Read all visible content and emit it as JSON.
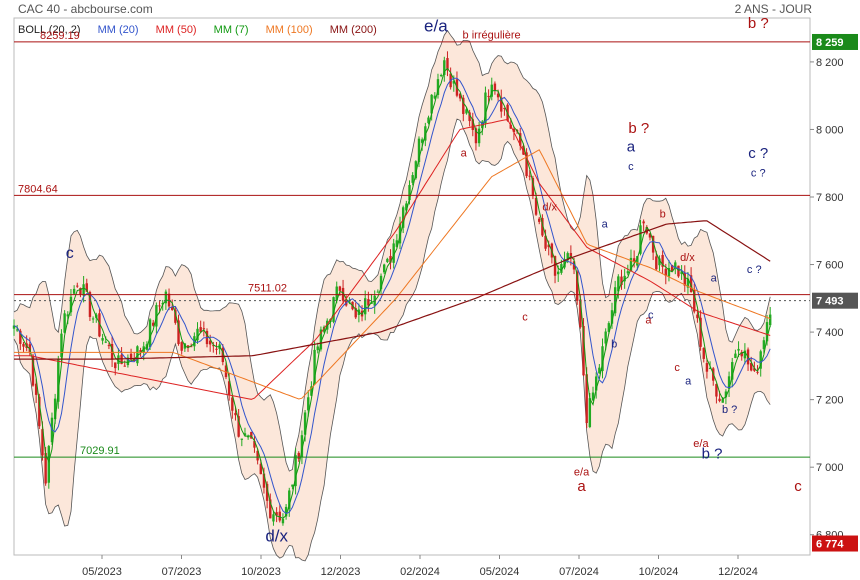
{
  "header": {
    "title": "CAC 40 - abcbourse.com",
    "period": "2 ANS - JOUR"
  },
  "legend": [
    {
      "label": "BOLL (20, 2)",
      "color": "#222222"
    },
    {
      "label": "MM (20)",
      "color": "#3355cc"
    },
    {
      "label": "MM (50)",
      "color": "#dd2222"
    },
    {
      "label": "MM (7)",
      "color": "#119911"
    },
    {
      "label": "MM (100)",
      "color": "#ee7722"
    },
    {
      "label": "MM (200)",
      "color": "#881111"
    }
  ],
  "chart_data": {
    "type": "line",
    "description_note": "",
    "x_ticks": [
      "05/2023",
      "07/2023",
      "10/2023",
      "12/2023",
      "02/2024",
      "05/2024",
      "07/2024",
      "10/2024",
      "12/2024"
    ],
    "y_ticks": [
      6800,
      7000,
      7200,
      7400,
      7600,
      7800,
      8000,
      8200
    ],
    "ylim": [
      6740,
      8330
    ],
    "last_price": {
      "label": "7 493",
      "value": 7493,
      "color": "#555555"
    },
    "top_badge": {
      "label": "8 259",
      "value": 8259,
      "color": "#1a8a1a"
    },
    "bottom_badge": {
      "label": "6 774",
      "value": 6774,
      "color": "#cc1111"
    },
    "levels": [
      {
        "label": "8259.19",
        "value": 8259.19,
        "color": "#aa1111"
      },
      {
        "label": "7804.64",
        "value": 7804.64,
        "color": "#aa1111"
      },
      {
        "label": "7511.02",
        "value": 7511.02,
        "color": "#aa1111"
      },
      {
        "label": "7029.91",
        "value": 7029.91,
        "color": "#1a8a1a"
      }
    ],
    "price_anchors": [
      [
        0,
        7420
      ],
      [
        0.02,
        7340
      ],
      [
        0.04,
        6960
      ],
      [
        0.06,
        7420
      ],
      [
        0.08,
        7560
      ],
      [
        0.1,
        7440
      ],
      [
        0.13,
        7300
      ],
      [
        0.16,
        7350
      ],
      [
        0.19,
        7520
      ],
      [
        0.21,
        7360
      ],
      [
        0.23,
        7400
      ],
      [
        0.26,
        7340
      ],
      [
        0.28,
        7120
      ],
      [
        0.3,
        7050
      ],
      [
        0.32,
        6880
      ],
      [
        0.34,
        6850
      ],
      [
        0.36,
        7080
      ],
      [
        0.38,
        7350
      ],
      [
        0.41,
        7540
      ],
      [
        0.43,
        7430
      ],
      [
        0.45,
        7520
      ],
      [
        0.47,
        7600
      ],
      [
        0.49,
        7780
      ],
      [
        0.52,
        8060
      ],
      [
        0.54,
        8210
      ],
      [
        0.56,
        8080
      ],
      [
        0.58,
        7970
      ],
      [
        0.6,
        8160
      ],
      [
        0.62,
        8030
      ],
      [
        0.64,
        7930
      ],
      [
        0.66,
        7700
      ],
      [
        0.68,
        7570
      ],
      [
        0.7,
        7620
      ],
      [
        0.71,
        7440
      ],
      [
        0.72,
        7140
      ],
      [
        0.74,
        7350
      ],
      [
        0.76,
        7560
      ],
      [
        0.78,
        7600
      ],
      [
        0.79,
        7750
      ],
      [
        0.81,
        7590
      ],
      [
        0.83,
        7600
      ],
      [
        0.85,
        7520
      ],
      [
        0.87,
        7290
      ],
      [
        0.89,
        7200
      ],
      [
        0.91,
        7380
      ],
      [
        0.93,
        7260
      ],
      [
        0.95,
        7480
      ]
    ],
    "mm200_anchors": [
      [
        0.12,
        7320
      ],
      [
        0.3,
        7330
      ],
      [
        0.46,
        7400
      ],
      [
        0.58,
        7500
      ],
      [
        0.7,
        7620
      ],
      [
        0.82,
        7720
      ],
      [
        0.87,
        7730
      ],
      [
        0.95,
        7610
      ]
    ],
    "mm100_anchors": [
      [
        0.2,
        7340
      ],
      [
        0.36,
        7200
      ],
      [
        0.48,
        7500
      ],
      [
        0.6,
        7860
      ],
      [
        0.66,
        7940
      ],
      [
        0.72,
        7660
      ],
      [
        0.8,
        7590
      ],
      [
        0.86,
        7520
      ],
      [
        0.95,
        7440
      ]
    ],
    "mm50_anchors": [
      [
        0.02,
        7330
      ],
      [
        0.3,
        7200
      ],
      [
        0.38,
        7380
      ],
      [
        0.48,
        7700
      ],
      [
        0.56,
        8000
      ],
      [
        0.62,
        8030
      ],
      [
        0.66,
        7840
      ],
      [
        0.72,
        7650
      ],
      [
        0.8,
        7550
      ],
      [
        0.86,
        7460
      ],
      [
        0.95,
        7390
      ]
    ],
    "annotations": [
      {
        "text": "e/a",
        "value": 8290,
        "pos": 0.53,
        "color": "#1a237e",
        "size": 17
      },
      {
        "text": "b irrégulière",
        "value": 8270,
        "pos": 0.6,
        "color": "#aa1111",
        "size": 11
      },
      {
        "text": "b ?",
        "value": 8300,
        "pos": 0.935,
        "color": "#aa1111",
        "size": 15
      },
      {
        "text": "a",
        "value": 7920,
        "pos": 0.565,
        "color": "#aa1111",
        "size": 11
      },
      {
        "text": "c",
        "value": 7620,
        "pos": 0.07,
        "color": "#1a237e",
        "size": 16
      },
      {
        "text": "b ?",
        "value": 7990,
        "pos": 0.785,
        "color": "#aa1111",
        "size": 15
      },
      {
        "text": "a",
        "value": 7935,
        "pos": 0.775,
        "color": "#1a237e",
        "size": 15
      },
      {
        "text": "c",
        "value": 7880,
        "pos": 0.775,
        "color": "#1a237e",
        "size": 11
      },
      {
        "text": "c ?",
        "value": 7915,
        "pos": 0.935,
        "color": "#1a237e",
        "size": 15
      },
      {
        "text": "c ?",
        "value": 7860,
        "pos": 0.935,
        "color": "#1a237e",
        "size": 11
      },
      {
        "text": "d/x",
        "value": 7760,
        "pos": 0.673,
        "color": "#aa1111",
        "size": 11
      },
      {
        "text": "a",
        "value": 7710,
        "pos": 0.742,
        "color": "#1a237e",
        "size": 11
      },
      {
        "text": "b",
        "value": 7740,
        "pos": 0.815,
        "color": "#aa1111",
        "size": 11
      },
      {
        "text": "d/x",
        "value": 7610,
        "pos": 0.846,
        "color": "#aa1111",
        "size": 11
      },
      {
        "text": "c ?",
        "value": 7575,
        "pos": 0.93,
        "color": "#1a237e",
        "size": 11
      },
      {
        "text": "a",
        "value": 7550,
        "pos": 0.879,
        "color": "#1a237e",
        "size": 11
      },
      {
        "text": "c",
        "value": 7435,
        "pos": 0.642,
        "color": "#aa1111",
        "size": 11
      },
      {
        "text": "a",
        "value": 7425,
        "pos": 0.797,
        "color": "#aa1111",
        "size": 11
      },
      {
        "text": "c",
        "value": 7440,
        "pos": 0.8,
        "color": "#1a237e",
        "size": 11
      },
      {
        "text": "b",
        "value": 7355,
        "pos": 0.754,
        "color": "#1a237e",
        "size": 11
      },
      {
        "text": "c",
        "value": 7285,
        "pos": 0.833,
        "color": "#aa1111",
        "size": 11
      },
      {
        "text": "a",
        "value": 7245,
        "pos": 0.847,
        "color": "#1a237e",
        "size": 11
      },
      {
        "text": "b ?",
        "value": 7160,
        "pos": 0.899,
        "color": "#1a237e",
        "size": 11
      },
      {
        "text": "e/a",
        "value": 7060,
        "pos": 0.863,
        "color": "#aa1111",
        "size": 11
      },
      {
        "text": "b ?",
        "value": 7025,
        "pos": 0.877,
        "color": "#1a237e",
        "size": 15
      },
      {
        "text": "e/a",
        "value": 6975,
        "pos": 0.713,
        "color": "#aa1111",
        "size": 11
      },
      {
        "text": "a",
        "value": 6930,
        "pos": 0.713,
        "color": "#aa1111",
        "size": 15
      },
      {
        "text": "c",
        "value": 6930,
        "pos": 0.985,
        "color": "#aa1111",
        "size": 15
      },
      {
        "text": "d/x",
        "value": 6780,
        "pos": 0.33,
        "color": "#1a237e",
        "size": 17
      }
    ]
  }
}
